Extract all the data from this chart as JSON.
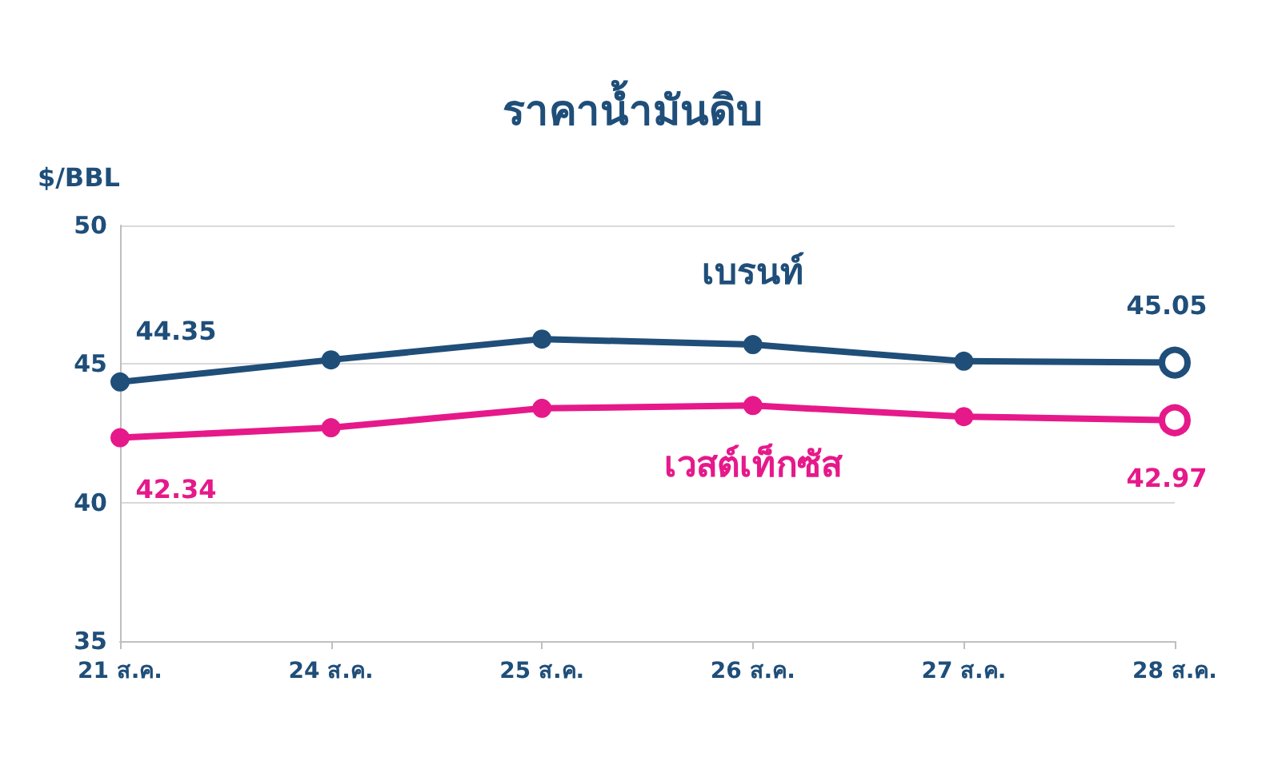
{
  "chart_data": {
    "type": "line",
    "title": "ราคาน้ำมันดิบ",
    "ylabel": "$/BBL",
    "categories": [
      "21 ส.ค.",
      "24 ส.ค.",
      "25 ส.ค.",
      "26 ส.ค.",
      "27 ส.ค.",
      "28 ส.ค."
    ],
    "series": [
      {
        "name": "เบรนท์",
        "color": "#1f4e79",
        "values": [
          44.35,
          45.15,
          45.9,
          45.7,
          45.1,
          45.05
        ],
        "value_labels": [
          "44.35",
          null,
          null,
          null,
          null,
          "45.05"
        ]
      },
      {
        "name": "เวสต์เท็กซัส",
        "color": "#e6198a",
        "values": [
          42.34,
          42.7,
          43.4,
          43.5,
          43.1,
          42.97
        ],
        "value_labels": [
          "42.34",
          null,
          null,
          null,
          null,
          "42.97"
        ]
      }
    ],
    "ylim": [
      35,
      50
    ],
    "yticks": [
      35,
      40,
      45,
      50
    ],
    "grid": "y",
    "legend": false,
    "marker": "circle",
    "line_style": "solid"
  }
}
